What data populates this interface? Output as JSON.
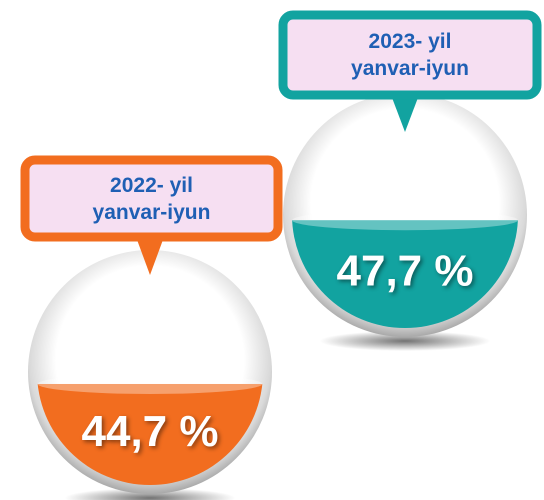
{
  "chart_data": {
    "type": "sphere-fill",
    "categories": [
      "2022- yil yanvar-iyun",
      "2023- yil yanvar-iyun"
    ],
    "values": [
      44.7,
      47.7
    ],
    "value_labels": [
      "44,7 %",
      "47,7 %"
    ],
    "colors": [
      "#f26d1f",
      "#12a3a0"
    ],
    "ylim": [
      0,
      100
    ]
  }
}
